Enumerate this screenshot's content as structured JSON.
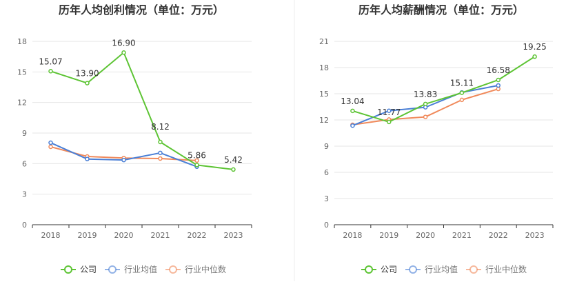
{
  "chart_data": [
    {
      "type": "line",
      "title": "历年人均创利情况（单位：万元）",
      "categories": [
        "2018",
        "2019",
        "2020",
        "2021",
        "2022",
        "2023"
      ],
      "yticks": [
        "0",
        "3",
        "6",
        "9",
        "12",
        "15",
        "18"
      ],
      "ylim": [
        0,
        18
      ],
      "series": [
        {
          "name": "公司",
          "color": "#5dc434",
          "values": [
            15.07,
            13.9,
            16.9,
            8.12,
            5.86,
            5.42
          ],
          "labels": [
            "15.07",
            "13.90",
            "16.90",
            "8.12",
            "5.86",
            "5.42"
          ]
        },
        {
          "name": "行业均值",
          "color": "#4a7fd6",
          "values": [
            8.05,
            6.45,
            6.35,
            7.05,
            5.7,
            null
          ]
        },
        {
          "name": "行业中位数",
          "color": "#f0895a",
          "values": [
            7.65,
            6.7,
            6.55,
            6.5,
            6.3,
            null
          ]
        }
      ],
      "legend": [
        "公司",
        "行业均值",
        "行业中位数"
      ],
      "legend_position": "bottom",
      "grid": true
    },
    {
      "type": "line",
      "title": "历年人均薪酬情况（单位：万元）",
      "categories": [
        "2018",
        "2019",
        "2020",
        "2021",
        "2022",
        "2023"
      ],
      "yticks": [
        "0",
        "3",
        "6",
        "9",
        "12",
        "15",
        "18",
        "21"
      ],
      "ylim": [
        0,
        21
      ],
      "series": [
        {
          "name": "公司",
          "color": "#5dc434",
          "values": [
            13.04,
            11.77,
            13.83,
            15.11,
            16.58,
            19.25
          ],
          "labels": [
            "13.04",
            "11.77",
            "13.83",
            "15.11",
            "16.58",
            "19.25"
          ]
        },
        {
          "name": "行业均值",
          "color": "#4a7fd6",
          "values": [
            11.35,
            13.05,
            13.45,
            15.15,
            15.95,
            null
          ]
        },
        {
          "name": "行业中位数",
          "color": "#f0895a",
          "values": [
            11.45,
            12.05,
            12.35,
            14.3,
            15.55,
            null
          ]
        }
      ],
      "legend": [
        "公司",
        "行业均值",
        "行业中位数"
      ],
      "legend_position": "bottom",
      "grid": true
    }
  ]
}
